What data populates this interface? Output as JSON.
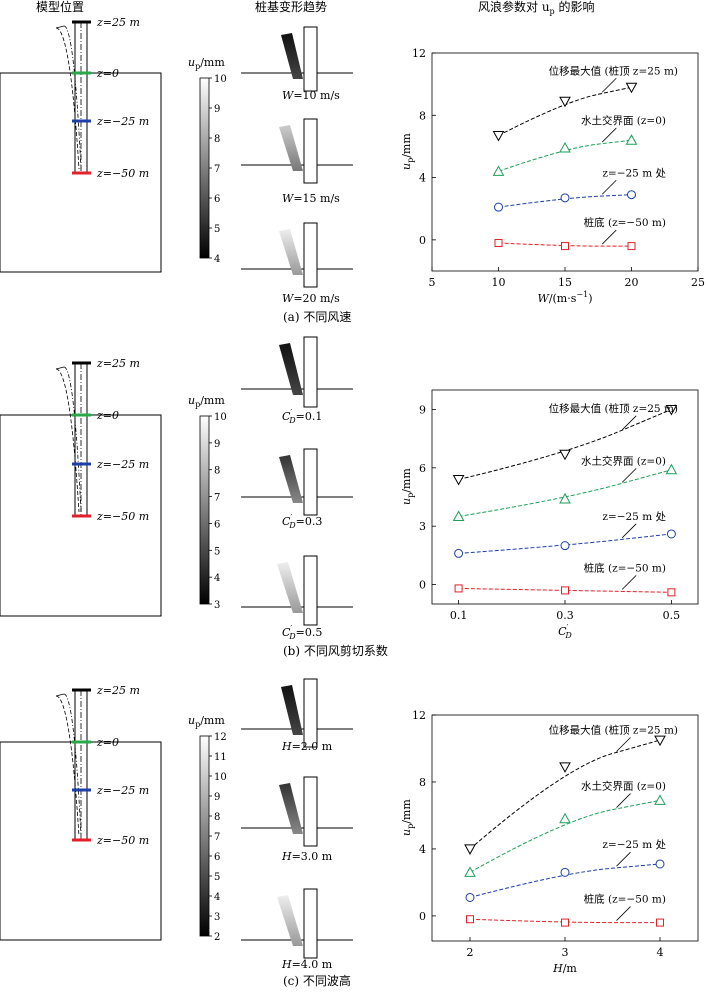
{
  "headers": {
    "model": "模型位置",
    "trend": "桩基变形趋势",
    "effect": "风浪参数对 u",
    "effect_sub": "p",
    "effect_tail": " 的影响"
  },
  "colorbar_label": "u",
  "colorbar_sub": "p",
  "colorbar_unit": "/mm",
  "model_labels": {
    "top": "z=25 m",
    "mud": "z=0",
    "mid": "z=−25 m",
    "bottom": "z=−50 m"
  },
  "series_labels": {
    "max": "位移最大值 (桩顶 z=25 m)",
    "mud": "水土交界面 (z=0)",
    "mid": "z=−25 m  处",
    "bottom": "桩底 (z=−50 m)"
  },
  "ylabel": "u",
  "ylabel_sub": "p",
  "ylabel_unit": "/mm",
  "panels": [
    {
      "caption": "(a)  不同风速",
      "colorbar_ticks": [
        "10",
        "9",
        "8",
        "7",
        "6",
        "5",
        "4"
      ],
      "trend_labels": [
        "W=10 m/s",
        "W=15 m/s",
        "W=20 m/s"
      ],
      "xlabel": "W/(m·s",
      "xlabel_sup": "−1",
      "xlabel_tail": ")",
      "xticks": [
        "5",
        "10",
        "15",
        "20",
        "25"
      ],
      "yticks": [
        "0",
        "4",
        "8",
        "12"
      ],
      "chart_data": {
        "type": "line",
        "x": [
          10,
          15,
          20
        ],
        "xlim": [
          5,
          25
        ],
        "ylim": [
          -2,
          12
        ],
        "series": [
          {
            "name": "位移最大值 (桩顶 z=25 m)",
            "color": "#000000",
            "marker": "triangle-down",
            "values": [
              6.7,
              8.9,
              9.8
            ]
          },
          {
            "name": "水土交界面 (z=0)",
            "color": "#1f9e5a",
            "marker": "triangle-up",
            "values": [
              4.4,
              5.9,
              6.4
            ]
          },
          {
            "name": "z=−25 m 处",
            "color": "#1f3fa8",
            "marker": "circle",
            "values": [
              2.1,
              2.7,
              2.9
            ]
          },
          {
            "name": "桩底 (z=−50 m)",
            "color": "#e0202a",
            "marker": "square",
            "values": [
              -0.2,
              -0.4,
              -0.4
            ]
          }
        ]
      }
    },
    {
      "caption": "(b)  不同风剪切系数",
      "colorbar_ticks": [
        "10",
        "9",
        "8",
        "7",
        "6",
        "5",
        "4",
        "3"
      ],
      "trend_labels": [
        "C′D=0.1",
        "C′D=0.3",
        "C′D=0.5"
      ],
      "trend_label_parts": [
        [
          "C",
          "D",
          "=0.1"
        ],
        [
          "C",
          "D",
          "=0.3"
        ],
        [
          "C",
          "D",
          "=0.5"
        ]
      ],
      "xlabel": "C",
      "xlabel_sup": "D",
      "xlabel_tail": "",
      "xticks": [
        "0.1",
        "0.3",
        "0.5"
      ],
      "yticks": [
        "0",
        "3",
        "6",
        "9"
      ],
      "chart_data": {
        "type": "line",
        "x": [
          0.1,
          0.3,
          0.5
        ],
        "xlim": [
          0.05,
          0.55
        ],
        "ylim": [
          -1,
          10
        ],
        "series": [
          {
            "name": "位移最大值 (桩顶 z=25 m)",
            "color": "#000000",
            "marker": "triangle-down",
            "values": [
              5.4,
              6.7,
              9.0
            ]
          },
          {
            "name": "水土交界面 (z=0)",
            "color": "#1f9e5a",
            "marker": "triangle-up",
            "values": [
              3.5,
              4.4,
              5.9
            ]
          },
          {
            "name": "z=−25 m 处",
            "color": "#1f3fa8",
            "marker": "circle",
            "values": [
              1.6,
              2.0,
              2.6
            ]
          },
          {
            "name": "桩底 (z=−50 m)",
            "color": "#e0202a",
            "marker": "square",
            "values": [
              -0.2,
              -0.3,
              -0.4
            ]
          }
        ]
      }
    },
    {
      "caption": "(c)  不同波高",
      "colorbar_ticks": [
        "12",
        "11",
        "10",
        "9",
        "8",
        "7",
        "6",
        "5",
        "4",
        "3",
        "2"
      ],
      "trend_labels": [
        "H=2.0 m",
        "H=3.0 m",
        "H=4.0 m"
      ],
      "xlabel": "H/m",
      "xlabel_sup": "",
      "xlabel_tail": "",
      "xticks": [
        "2",
        "3",
        "4"
      ],
      "yticks": [
        "0",
        "4",
        "8",
        "12"
      ],
      "chart_data": {
        "type": "line",
        "x": [
          2,
          3,
          4
        ],
        "xlim": [
          1.6,
          4.4
        ],
        "ylim": [
          -1.5,
          12
        ],
        "series": [
          {
            "name": "位移最大值 (桩顶 z=25 m)",
            "color": "#000000",
            "marker": "triangle-down",
            "values": [
              4.0,
              8.9,
              10.5
            ]
          },
          {
            "name": "水土交界面 (z=0)",
            "color": "#1f9e5a",
            "marker": "triangle-up",
            "values": [
              2.6,
              5.8,
              6.9
            ]
          },
          {
            "name": "z=−25 m 处",
            "color": "#1f3fa8",
            "marker": "circle",
            "values": [
              1.1,
              2.6,
              3.1
            ]
          },
          {
            "name": "桩底 (z=−50 m)",
            "color": "#e0202a",
            "marker": "square",
            "values": [
              -0.2,
              -0.4,
              -0.4
            ]
          }
        ]
      }
    }
  ]
}
